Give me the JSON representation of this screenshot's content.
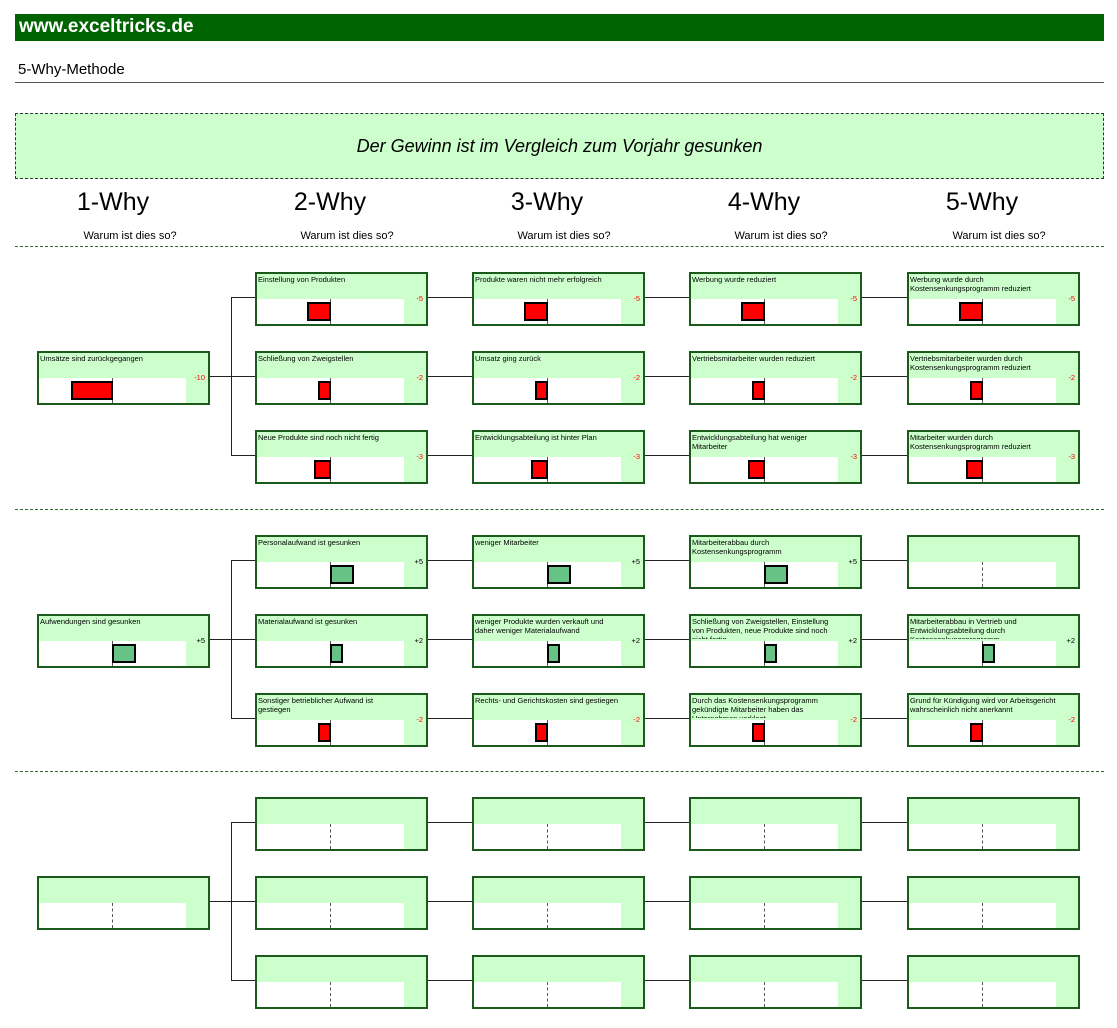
{
  "header": {
    "brand": "www.exceltricks.de",
    "subtitle": "5-Why-Methode"
  },
  "problem": "Der Gewinn ist im Vergleich zum Vorjahr gesunken",
  "columns": [
    {
      "title": "1-Why",
      "question": "Warum ist dies so?"
    },
    {
      "title": "2-Why",
      "question": "Warum ist dies so?"
    },
    {
      "title": "3-Why",
      "question": "Warum ist dies so?"
    },
    {
      "title": "4-Why",
      "question": "Warum ist dies so?"
    },
    {
      "title": "5-Why",
      "question": "Warum ist dies so?"
    }
  ],
  "colors": {
    "brand": "#006400",
    "box_fill": "#ccffcc",
    "negative": "#ff0000",
    "positive": "#66c285"
  },
  "sections": [
    {
      "root": {
        "text": "Umsätze sind zurückgegangen",
        "value": -10,
        "display": "-10"
      },
      "branches": [
        [
          {
            "text": "Einstellung von Produkten",
            "value": -5,
            "display": "-5"
          },
          {
            "text": "Produkte waren nicht mehr erfolgreich",
            "value": -5,
            "display": "-5"
          },
          {
            "text": "Werbung wurde reduziert",
            "value": -5,
            "display": "-5"
          },
          {
            "text": "Werbung wurde durch Kostensenkungsprogramm reduziert",
            "value": -5,
            "display": "-5"
          }
        ],
        [
          {
            "text": "Schließung von Zweigstellen",
            "value": -2,
            "display": "-2"
          },
          {
            "text": "Umsatz ging zurück",
            "value": -2,
            "display": "-2"
          },
          {
            "text": "Vertriebsmitarbeiter wurden reduziert",
            "value": -2,
            "display": "-2"
          },
          {
            "text": "Vertriebsmitarbeiter wurden durch Kostensenkungsprogramm reduziert",
            "value": -2,
            "display": "-2"
          }
        ],
        [
          {
            "text": "Neue Produkte sind noch nicht fertig",
            "value": -3,
            "display": "-3"
          },
          {
            "text": "Entwicklungsabteilung ist hinter Plan",
            "value": -3,
            "display": "-3"
          },
          {
            "text": "Entwicklungsabteilung hat weniger Mitarbeiter",
            "value": -3,
            "display": "-3"
          },
          {
            "text": "Mitarbeiter wurden durch Kostensenkungsprogramm reduziert",
            "value": -3,
            "display": "-3"
          }
        ]
      ]
    },
    {
      "root": {
        "text": "Aufwendungen sind gesunken",
        "value": 5,
        "display": "+5"
      },
      "branches": [
        [
          {
            "text": "Personalaufwand ist gesunken",
            "value": 5,
            "display": "+5"
          },
          {
            "text": "weniger Mitarbeiter",
            "value": 5,
            "display": "+5"
          },
          {
            "text": "Mitarbeiterabbau durch Kostensenkungsprogramm",
            "value": 5,
            "display": "+5"
          },
          {
            "text": "",
            "value": null,
            "display": ""
          }
        ],
        [
          {
            "text": "Materialaufwand ist gesunken",
            "value": 2,
            "display": "+2"
          },
          {
            "text": "weniger Produkte wurden verkauft und daher weniger Materialaufwand",
            "value": 2,
            "display": "+2"
          },
          {
            "text": "Schließung von Zweigstellen, Einstellung von Produkten, neue Produkte sind noch nicht fertig",
            "value": 2,
            "display": "+2"
          },
          {
            "text": "Mitarbeiterabbau in Vertrieb und Entwicklungsabteilung durch Kostensenkungsprogramm",
            "value": 2,
            "display": "+2"
          }
        ],
        [
          {
            "text": "Sonstiger betrieblicher Aufwand ist gestiegen",
            "value": -2,
            "display": "-2"
          },
          {
            "text": "Rechts- und Gerichtskosten sind gestiegen",
            "value": -2,
            "display": "-2"
          },
          {
            "text": "Durch das Kostensenkungsprogramm gekündigte Mitarbeiter haben das Unternehmen verklagt",
            "value": -2,
            "display": "-2"
          },
          {
            "text": "Grund für Kündigung wird vor Arbeitsgericht wahrscheinlich nicht anerkannt",
            "value": -2,
            "display": "-2"
          }
        ]
      ]
    },
    {
      "root": {
        "text": "",
        "value": null,
        "display": ""
      },
      "branches": [
        [
          {
            "text": "",
            "value": null,
            "display": ""
          },
          {
            "text": "",
            "value": null,
            "display": ""
          },
          {
            "text": "",
            "value": null,
            "display": ""
          },
          {
            "text": "",
            "value": null,
            "display": ""
          }
        ],
        [
          {
            "text": "",
            "value": null,
            "display": ""
          },
          {
            "text": "",
            "value": null,
            "display": ""
          },
          {
            "text": "",
            "value": null,
            "display": ""
          },
          {
            "text": "",
            "value": null,
            "display": ""
          }
        ],
        [
          {
            "text": "",
            "value": null,
            "display": ""
          },
          {
            "text": "",
            "value": null,
            "display": ""
          },
          {
            "text": "",
            "value": null,
            "display": ""
          },
          {
            "text": "",
            "value": null,
            "display": ""
          }
        ]
      ]
    }
  ]
}
